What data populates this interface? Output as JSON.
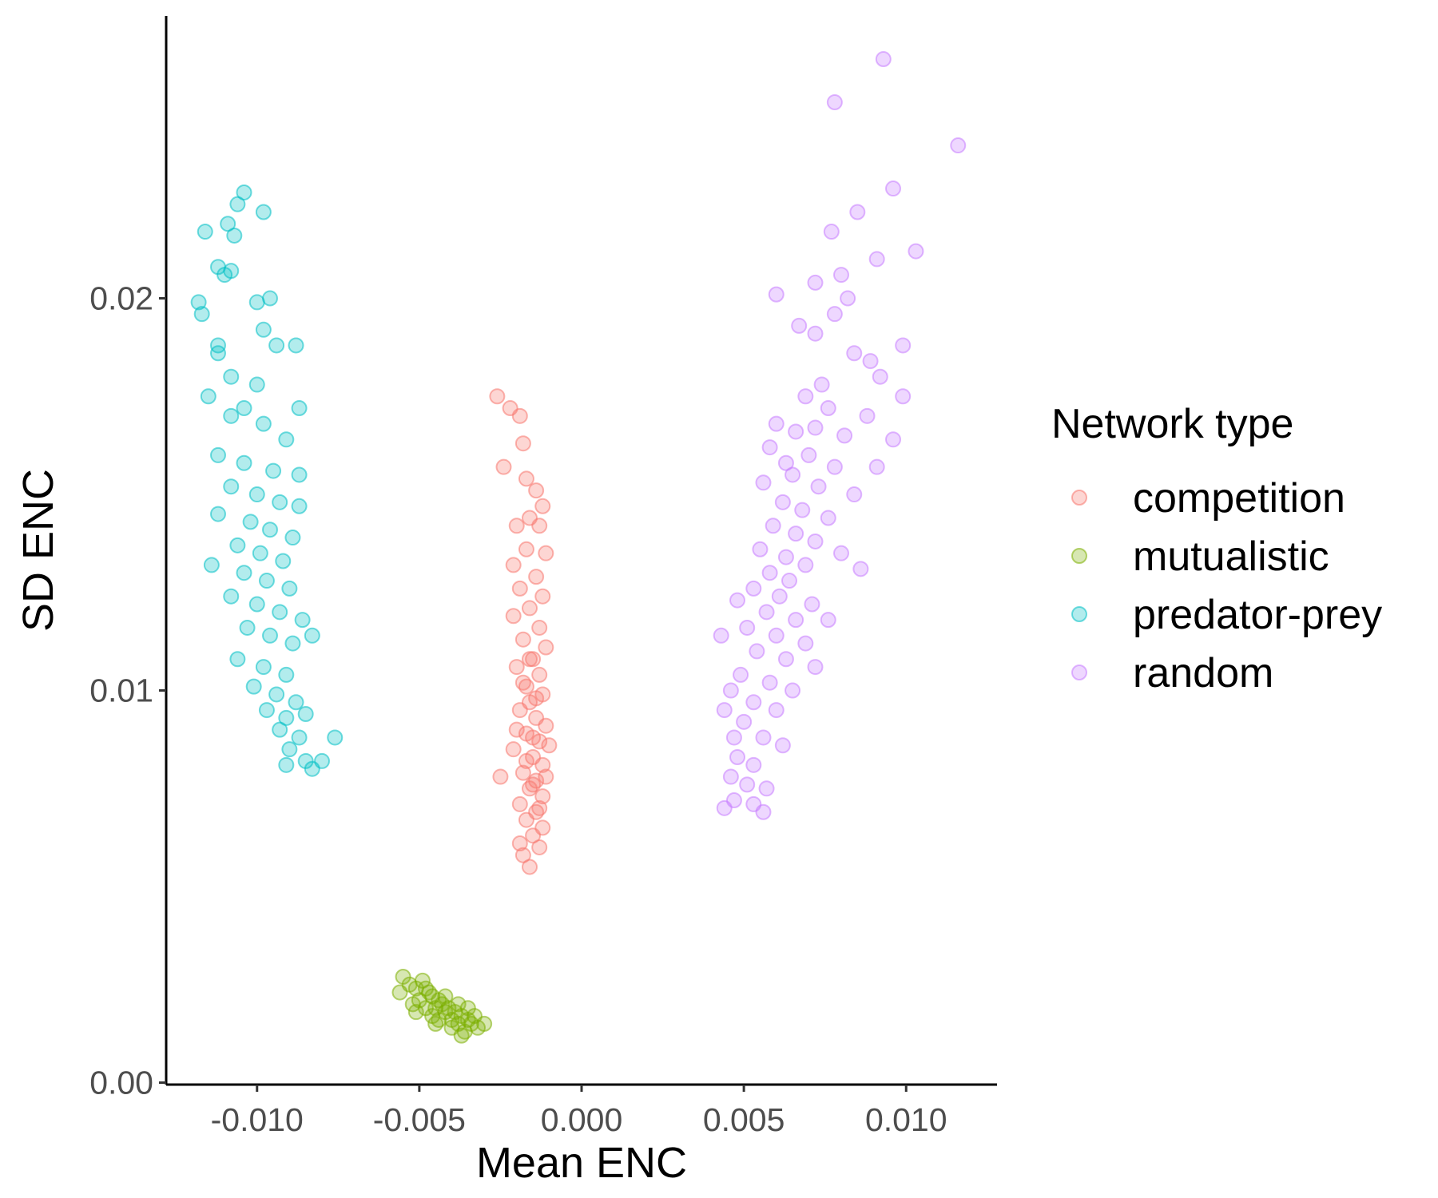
{
  "chart_data": {
    "type": "scatter",
    "title": "",
    "xlabel": "Mean ENC",
    "ylabel": "SD ENC",
    "xlim": [
      -0.0128,
      0.0128
    ],
    "ylim": [
      -5e-05,
      0.0272
    ],
    "x_ticks": [
      -0.01,
      -0.005,
      0.0,
      0.005,
      0.01
    ],
    "x_tick_labels": [
      "-0.010",
      "-0.005",
      "0.000",
      "0.005",
      "0.010"
    ],
    "y_ticks": [
      0.0,
      0.01,
      0.02
    ],
    "y_tick_labels": [
      "0.00",
      "0.01",
      "0.02"
    ],
    "grid": false,
    "legend_position": "right",
    "point_opacity": 0.3,
    "legend": {
      "title": "Network type",
      "entries": [
        "competition",
        "mutualistic",
        "predator-prey",
        "random"
      ]
    },
    "series": [
      {
        "name": "competition",
        "color": "#F8766D",
        "points": [
          [
            -0.0026,
            0.0175
          ],
          [
            -0.0022,
            0.0172
          ],
          [
            -0.0019,
            0.017
          ],
          [
            -0.0018,
            0.0163
          ],
          [
            -0.0024,
            0.0157
          ],
          [
            -0.0017,
            0.0154
          ],
          [
            -0.0014,
            0.0151
          ],
          [
            -0.0012,
            0.0147
          ],
          [
            -0.0016,
            0.0144
          ],
          [
            -0.002,
            0.0142
          ],
          [
            -0.0013,
            0.0142
          ],
          [
            -0.0017,
            0.0136
          ],
          [
            -0.0011,
            0.0135
          ],
          [
            -0.0021,
            0.0132
          ],
          [
            -0.0014,
            0.0129
          ],
          [
            -0.0019,
            0.0126
          ],
          [
            -0.0012,
            0.0124
          ],
          [
            -0.0016,
            0.0121
          ],
          [
            -0.0021,
            0.0119
          ],
          [
            -0.0013,
            0.0116
          ],
          [
            -0.0018,
            0.0113
          ],
          [
            -0.0011,
            0.0111
          ],
          [
            -0.0015,
            0.0108
          ],
          [
            -0.002,
            0.0106
          ],
          [
            -0.0013,
            0.0104
          ],
          [
            -0.0017,
            0.0101
          ],
          [
            -0.0012,
            0.0099
          ],
          [
            -0.0016,
            0.0097
          ],
          [
            -0.0019,
            0.0095
          ],
          [
            -0.0014,
            0.0093
          ],
          [
            -0.0011,
            0.0091
          ],
          [
            -0.0017,
            0.0089
          ],
          [
            -0.0013,
            0.0087
          ],
          [
            -0.0021,
            0.0085
          ],
          [
            -0.0015,
            0.0083
          ],
          [
            -0.0012,
            0.0081
          ],
          [
            -0.0018,
            0.0079
          ],
          [
            -0.0014,
            0.0077
          ],
          [
            -0.0025,
            0.0078
          ],
          [
            -0.0016,
            0.0075
          ],
          [
            -0.0012,
            0.0073
          ],
          [
            -0.0019,
            0.0071
          ],
          [
            -0.0014,
            0.0069
          ],
          [
            -0.0017,
            0.0067
          ],
          [
            -0.0012,
            0.0065
          ],
          [
            -0.0015,
            0.0063
          ],
          [
            -0.0019,
            0.0061
          ],
          [
            -0.0013,
            0.006
          ],
          [
            -0.0018,
            0.0058
          ],
          [
            -0.0016,
            0.0055
          ],
          [
            -0.001,
            0.0086
          ],
          [
            -0.0011,
            0.0078
          ],
          [
            -0.002,
            0.009
          ],
          [
            -0.0016,
            0.0108
          ],
          [
            -0.0018,
            0.0102
          ],
          [
            -0.0014,
            0.0098
          ],
          [
            -0.0015,
            0.0088
          ],
          [
            -0.0017,
            0.0082
          ],
          [
            -0.0013,
            0.007
          ],
          [
            -0.0015,
            0.0076
          ]
        ]
      },
      {
        "name": "mutualistic",
        "color": "#7CAE00",
        "points": [
          [
            -0.0055,
            0.0027
          ],
          [
            -0.0053,
            0.0025
          ],
          [
            -0.0056,
            0.0023
          ],
          [
            -0.0051,
            0.0024
          ],
          [
            -0.0049,
            0.0026
          ],
          [
            -0.0047,
            0.0023
          ],
          [
            -0.005,
            0.0021
          ],
          [
            -0.0052,
            0.002
          ],
          [
            -0.0046,
            0.0022
          ],
          [
            -0.0044,
            0.0021
          ],
          [
            -0.0048,
            0.0019
          ],
          [
            -0.0045,
            0.0019
          ],
          [
            -0.0043,
            0.002
          ],
          [
            -0.0041,
            0.0019
          ],
          [
            -0.0046,
            0.0017
          ],
          [
            -0.0042,
            0.0018
          ],
          [
            -0.0039,
            0.0018
          ],
          [
            -0.0044,
            0.0016
          ],
          [
            -0.004,
            0.0016
          ],
          [
            -0.0037,
            0.0017
          ],
          [
            -0.0035,
            0.0016
          ],
          [
            -0.0038,
            0.0015
          ],
          [
            -0.0034,
            0.0015
          ],
          [
            -0.0036,
            0.0013
          ],
          [
            -0.0032,
            0.0014
          ],
          [
            -0.003,
            0.0015
          ],
          [
            -0.0033,
            0.0017
          ],
          [
            -0.0048,
            0.0024
          ],
          [
            -0.0042,
            0.0022
          ],
          [
            -0.0038,
            0.002
          ],
          [
            -0.0051,
            0.0018
          ],
          [
            -0.004,
            0.0014
          ],
          [
            -0.0035,
            0.0019
          ],
          [
            -0.0045,
            0.0015
          ],
          [
            -0.0037,
            0.0012
          ]
        ]
      },
      {
        "name": "predator-prey",
        "color": "#00BFC4",
        "points": [
          [
            -0.0104,
            0.0227
          ],
          [
            -0.0106,
            0.0224
          ],
          [
            -0.0098,
            0.0222
          ],
          [
            -0.0109,
            0.0219
          ],
          [
            -0.0116,
            0.0217
          ],
          [
            -0.0107,
            0.0216
          ],
          [
            -0.0112,
            0.0208
          ],
          [
            -0.0108,
            0.0207
          ],
          [
            -0.011,
            0.0206
          ],
          [
            -0.0118,
            0.0199
          ],
          [
            -0.01,
            0.0199
          ],
          [
            -0.0096,
            0.02
          ],
          [
            -0.0117,
            0.0196
          ],
          [
            -0.0098,
            0.0192
          ],
          [
            -0.0112,
            0.0188
          ],
          [
            -0.0094,
            0.0188
          ],
          [
            -0.0088,
            0.0188
          ],
          [
            -0.0112,
            0.0186
          ],
          [
            -0.0108,
            0.018
          ],
          [
            -0.01,
            0.0178
          ],
          [
            -0.0115,
            0.0175
          ],
          [
            -0.0104,
            0.0172
          ],
          [
            -0.0087,
            0.0172
          ],
          [
            -0.0108,
            0.017
          ],
          [
            -0.0098,
            0.0168
          ],
          [
            -0.0091,
            0.0164
          ],
          [
            -0.0112,
            0.016
          ],
          [
            -0.0104,
            0.0158
          ],
          [
            -0.0095,
            0.0156
          ],
          [
            -0.0087,
            0.0155
          ],
          [
            -0.0108,
            0.0152
          ],
          [
            -0.01,
            0.015
          ],
          [
            -0.0093,
            0.0148
          ],
          [
            -0.0087,
            0.0147
          ],
          [
            -0.0112,
            0.0145
          ],
          [
            -0.0102,
            0.0143
          ],
          [
            -0.0096,
            0.0141
          ],
          [
            -0.0089,
            0.0139
          ],
          [
            -0.0106,
            0.0137
          ],
          [
            -0.0099,
            0.0135
          ],
          [
            -0.0092,
            0.0133
          ],
          [
            -0.0114,
            0.0132
          ],
          [
            -0.0104,
            0.013
          ],
          [
            -0.0097,
            0.0128
          ],
          [
            -0.009,
            0.0126
          ],
          [
            -0.0108,
            0.0124
          ],
          [
            -0.01,
            0.0122
          ],
          [
            -0.0093,
            0.012
          ],
          [
            -0.0086,
            0.0118
          ],
          [
            -0.0103,
            0.0116
          ],
          [
            -0.0096,
            0.0114
          ],
          [
            -0.0089,
            0.0112
          ],
          [
            -0.0083,
            0.0114
          ],
          [
            -0.0106,
            0.0108
          ],
          [
            -0.0098,
            0.0106
          ],
          [
            -0.0091,
            0.0104
          ],
          [
            -0.0101,
            0.0101
          ],
          [
            -0.0094,
            0.0099
          ],
          [
            -0.0088,
            0.0097
          ],
          [
            -0.0097,
            0.0095
          ],
          [
            -0.0091,
            0.0093
          ],
          [
            -0.0085,
            0.0094
          ],
          [
            -0.0093,
            0.009
          ],
          [
            -0.0087,
            0.0088
          ],
          [
            -0.0076,
            0.0088
          ],
          [
            -0.009,
            0.0085
          ],
          [
            -0.008,
            0.0082
          ],
          [
            -0.0085,
            0.0082
          ],
          [
            -0.0091,
            0.0081
          ],
          [
            -0.0083,
            0.008
          ]
        ]
      },
      {
        "name": "random",
        "color": "#C77CFF",
        "points": [
          [
            0.0093,
            0.0261
          ],
          [
            0.0078,
            0.025
          ],
          [
            0.0116,
            0.0239
          ],
          [
            0.0096,
            0.0228
          ],
          [
            0.0085,
            0.0222
          ],
          [
            0.0077,
            0.0217
          ],
          [
            0.0103,
            0.0212
          ],
          [
            0.0091,
            0.021
          ],
          [
            0.008,
            0.0206
          ],
          [
            0.0072,
            0.0204
          ],
          [
            0.006,
            0.0201
          ],
          [
            0.0082,
            0.02
          ],
          [
            0.0078,
            0.0196
          ],
          [
            0.0067,
            0.0193
          ],
          [
            0.0072,
            0.0191
          ],
          [
            0.0099,
            0.0188
          ],
          [
            0.0084,
            0.0186
          ],
          [
            0.0089,
            0.0184
          ],
          [
            0.0092,
            0.018
          ],
          [
            0.0074,
            0.0178
          ],
          [
            0.0069,
            0.0175
          ],
          [
            0.0099,
            0.0175
          ],
          [
            0.0076,
            0.0172
          ],
          [
            0.0088,
            0.017
          ],
          [
            0.006,
            0.0168
          ],
          [
            0.0072,
            0.0167
          ],
          [
            0.0066,
            0.0166
          ],
          [
            0.0081,
            0.0165
          ],
          [
            0.0096,
            0.0164
          ],
          [
            0.0058,
            0.0162
          ],
          [
            0.007,
            0.016
          ],
          [
            0.0063,
            0.0158
          ],
          [
            0.0078,
            0.0157
          ],
          [
            0.0091,
            0.0157
          ],
          [
            0.0065,
            0.0155
          ],
          [
            0.0056,
            0.0153
          ],
          [
            0.0073,
            0.0152
          ],
          [
            0.0084,
            0.015
          ],
          [
            0.0062,
            0.0148
          ],
          [
            0.0068,
            0.0146
          ],
          [
            0.0076,
            0.0144
          ],
          [
            0.0059,
            0.0142
          ],
          [
            0.0066,
            0.014
          ],
          [
            0.0072,
            0.0138
          ],
          [
            0.0055,
            0.0136
          ],
          [
            0.0063,
            0.0134
          ],
          [
            0.008,
            0.0135
          ],
          [
            0.0069,
            0.0132
          ],
          [
            0.0058,
            0.013
          ],
          [
            0.0086,
            0.0131
          ],
          [
            0.0064,
            0.0128
          ],
          [
            0.0053,
            0.0126
          ],
          [
            0.0061,
            0.0124
          ],
          [
            0.0071,
            0.0122
          ],
          [
            0.0048,
            0.0123
          ],
          [
            0.0057,
            0.012
          ],
          [
            0.0066,
            0.0118
          ],
          [
            0.0076,
            0.0118
          ],
          [
            0.0051,
            0.0116
          ],
          [
            0.006,
            0.0114
          ],
          [
            0.0043,
            0.0114
          ],
          [
            0.0069,
            0.0112
          ],
          [
            0.0054,
            0.011
          ],
          [
            0.0063,
            0.0108
          ],
          [
            0.0072,
            0.0106
          ],
          [
            0.0049,
            0.0104
          ],
          [
            0.0058,
            0.0102
          ],
          [
            0.0046,
            0.01
          ],
          [
            0.0065,
            0.01
          ],
          [
            0.0053,
            0.0097
          ],
          [
            0.0044,
            0.0095
          ],
          [
            0.006,
            0.0095
          ],
          [
            0.005,
            0.0092
          ],
          [
            0.0047,
            0.0088
          ],
          [
            0.0056,
            0.0088
          ],
          [
            0.0062,
            0.0086
          ],
          [
            0.0048,
            0.0083
          ],
          [
            0.0053,
            0.0081
          ],
          [
            0.0046,
            0.0078
          ],
          [
            0.0051,
            0.0076
          ],
          [
            0.0057,
            0.0075
          ],
          [
            0.0047,
            0.0072
          ],
          [
            0.0053,
            0.0071
          ],
          [
            0.0044,
            0.007
          ],
          [
            0.0056,
            0.0069
          ]
        ]
      }
    ]
  }
}
